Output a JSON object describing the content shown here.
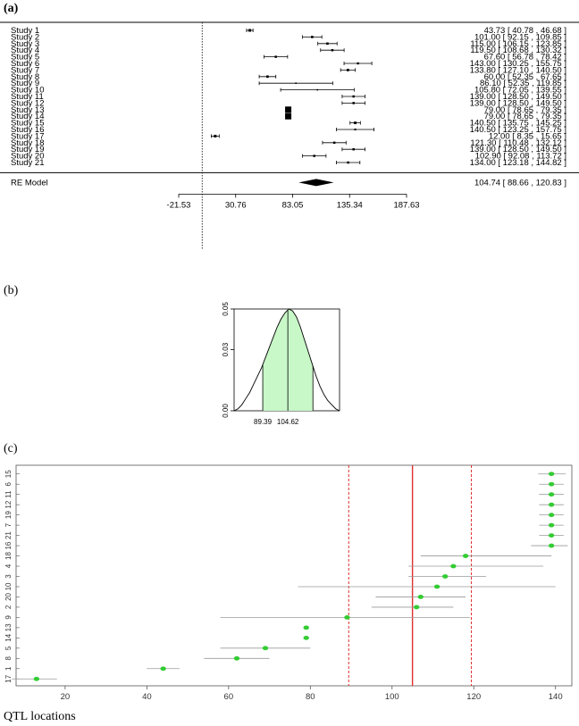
{
  "panels": {
    "a": "(a)",
    "b": "(b)",
    "c": "(c)"
  },
  "chart_data": [
    {
      "type": "forest",
      "panel": "(a)",
      "studies": [
        {
          "label": "Study 1",
          "est": 43.73,
          "lo": 40.78,
          "hi": 46.68,
          "text": "43.73 [ 40.78 , 46.68 ]"
        },
        {
          "label": "Study 2",
          "est": 101.0,
          "lo": 92.15,
          "hi": 109.85,
          "text": "101.00 [ 92.15 , 109.85 ]"
        },
        {
          "label": "Study 3",
          "est": 115.0,
          "lo": 106.15,
          "hi": 123.85,
          "text": "115.00 [ 106.15 , 123.85 ]"
        },
        {
          "label": "Study 4",
          "est": 119.5,
          "lo": 108.68,
          "hi": 130.32,
          "text": "119.50 [ 108.68 , 130.32 ]"
        },
        {
          "label": "Study 5",
          "est": 67.6,
          "lo": 56.78,
          "hi": 78.42,
          "text": "67.60 [ 56.78 , 78.42 ]"
        },
        {
          "label": "Study 6",
          "est": 143.0,
          "lo": 130.25,
          "hi": 155.75,
          "text": "143.00 [ 130.25 , 155.75 ]"
        },
        {
          "label": "Study 7",
          "est": 133.8,
          "lo": 127.1,
          "hi": 140.5,
          "text": "133.80 [ 127.10 , 140.50 ]"
        },
        {
          "label": "Study 8",
          "est": 60.0,
          "lo": 52.35,
          "hi": 67.65,
          "text": "60.00 [ 52.35 , 67.65 ]"
        },
        {
          "label": "Study 9",
          "est": 86.1,
          "lo": 52.35,
          "hi": 119.85,
          "text": "86.10 [ 52.35 , 119.85 ]"
        },
        {
          "label": "Study 10",
          "est": 105.8,
          "lo": 72.05,
          "hi": 139.55,
          "text": "105.80 [ 72.05 , 139.55 ]"
        },
        {
          "label": "Study 11",
          "est": 139.0,
          "lo": 128.5,
          "hi": 149.5,
          "text": "139.00 [ 128.50 , 149.50 ]"
        },
        {
          "label": "Study 12",
          "est": 139.0,
          "lo": 128.5,
          "hi": 149.5,
          "text": "139.00 [ 128.50 , 149.50 ]"
        },
        {
          "label": "Study 13",
          "est": 79.0,
          "lo": 78.65,
          "hi": 79.35,
          "text": "79.00 [ 78.65 , 79.35 ]"
        },
        {
          "label": "Study 14",
          "est": 79.0,
          "lo": 78.65,
          "hi": 79.35,
          "text": "79.00 [ 78.65 , 79.35 ]"
        },
        {
          "label": "Study 15",
          "est": 140.5,
          "lo": 135.75,
          "hi": 145.25,
          "text": "140.50 [ 135.75 , 145.25 ]"
        },
        {
          "label": "Study 16",
          "est": 140.5,
          "lo": 123.25,
          "hi": 157.75,
          "text": "140.50 [ 123.25 , 157.75 ]"
        },
        {
          "label": "Study 17",
          "est": 12.0,
          "lo": 8.35,
          "hi": 15.65,
          "text": "12.00 [ 8.35 , 15.65 ]"
        },
        {
          "label": "Study 18",
          "est": 121.3,
          "lo": 110.48,
          "hi": 132.12,
          "text": "121.30 [ 110.48 , 132.12 ]"
        },
        {
          "label": "Study 19",
          "est": 139.0,
          "lo": 128.5,
          "hi": 149.5,
          "text": "139.00 [ 128.50 , 149.50 ]"
        },
        {
          "label": "Study 20",
          "est": 102.9,
          "lo": 92.08,
          "hi": 113.72,
          "text": "102.90 [ 92.08 , 113.72 ]"
        },
        {
          "label": "Study 21",
          "est": 134.0,
          "lo": 123.18,
          "hi": 144.82,
          "text": "134.00 [ 123.18 , 144.82 ]"
        }
      ],
      "summary": {
        "label": "RE Model",
        "est": 104.74,
        "lo": 88.66,
        "hi": 120.83,
        "text": "104.74 [ 88.66 , 120.83 ]"
      },
      "xticks": [
        -21.53,
        30.76,
        83.05,
        135.34,
        187.63
      ],
      "xtick_labels": [
        "-21.53",
        "30.76",
        "83.05",
        "135.34",
        "187.63"
      ],
      "reference_line": 0,
      "xlim": [
        -21.53,
        187.63
      ]
    },
    {
      "type": "area",
      "panel": "(b)",
      "x_range": [
        72,
        136
      ],
      "mean": 104.62,
      "lower": 89.39,
      "upper": 119.85,
      "ylim": [
        0,
        0.05
      ],
      "yticks": [
        0.0,
        0.03,
        0.05
      ],
      "ytick_labels": [
        "0.00",
        "0.03",
        "0.05"
      ],
      "xtick_labels": [
        "89.39",
        "104.62"
      ],
      "density": [
        0,
        0.001,
        0.003,
        0.006,
        0.009,
        0.013,
        0.017,
        0.021,
        0.026,
        0.031,
        0.036,
        0.041,
        0.045,
        0.048,
        0.05,
        0.049,
        0.046,
        0.041,
        0.035,
        0.029,
        0.023,
        0.017,
        0.012,
        0.008,
        0.005,
        0.003,
        0.001,
        0
      ],
      "fill_color": "#c8f7c8"
    },
    {
      "type": "scatter",
      "panel": "(c)",
      "xlabel": "QTL locations",
      "xticks": [
        20,
        40,
        60,
        80,
        100,
        120,
        140
      ],
      "xlim": [
        8,
        144
      ],
      "rows": [
        {
          "id": "15",
          "x": 139.0,
          "lo": 135.75,
          "hi": 142.5
        },
        {
          "id": "6",
          "x": 139.0,
          "lo": 136.0,
          "hi": 142.0
        },
        {
          "id": "11",
          "x": 139.0,
          "lo": 136.0,
          "hi": 142.0
        },
        {
          "id": "12",
          "x": 139.0,
          "lo": 136.0,
          "hi": 142.0
        },
        {
          "id": "19",
          "x": 139.0,
          "lo": 136.0,
          "hi": 142.0
        },
        {
          "id": "7",
          "x": 139.0,
          "lo": 136.0,
          "hi": 142.0
        },
        {
          "id": "21",
          "x": 139.0,
          "lo": 136.0,
          "hi": 142.0
        },
        {
          "id": "16",
          "x": 139.0,
          "lo": 134.0,
          "hi": 143.0
        },
        {
          "id": "18",
          "x": 118.0,
          "lo": 107.0,
          "hi": 139.0
        },
        {
          "id": "4",
          "x": 115.0,
          "lo": 104.0,
          "hi": 137.0
        },
        {
          "id": "3",
          "x": 113.0,
          "lo": 104.0,
          "hi": 123.0
        },
        {
          "id": "10",
          "x": 111.0,
          "lo": 77.0,
          "hi": 140.0
        },
        {
          "id": "20",
          "x": 107.0,
          "lo": 96.0,
          "hi": 118.0
        },
        {
          "id": "2",
          "x": 106.0,
          "lo": 95.0,
          "hi": 115.0
        },
        {
          "id": "9",
          "x": 89.0,
          "lo": 58.0,
          "hi": 119.0
        },
        {
          "id": "13",
          "x": 79.0,
          "lo": 78.7,
          "hi": 79.4
        },
        {
          "id": "14",
          "x": 79.0,
          "lo": 78.7,
          "hi": 79.4
        },
        {
          "id": "5",
          "x": 69.0,
          "lo": 58.0,
          "hi": 80.0
        },
        {
          "id": "8",
          "x": 62.0,
          "lo": 54.0,
          "hi": 70.0
        },
        {
          "id": "1",
          "x": 44.0,
          "lo": 40.0,
          "hi": 48.0
        },
        {
          "id": "17",
          "x": 13.0,
          "lo": 7.0,
          "hi": 18.0
        }
      ],
      "mean_line": 105.0,
      "ci_lines": [
        89.4,
        119.4
      ],
      "point_color": "#33cc33",
      "mean_line_color": "#e03030",
      "ci_line_color": "#e03030"
    }
  ]
}
